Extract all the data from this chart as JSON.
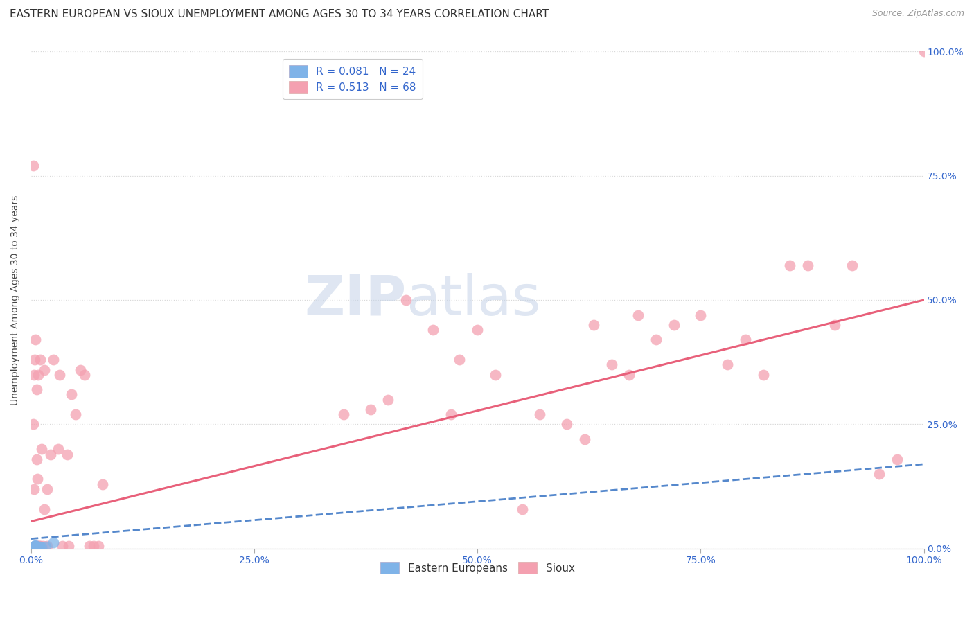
{
  "title": "EASTERN EUROPEAN VS SIOUX UNEMPLOYMENT AMONG AGES 30 TO 34 YEARS CORRELATION CHART",
  "source": "Source: ZipAtlas.com",
  "ylabel": "Unemployment Among Ages 30 to 34 years",
  "xlim": [
    0,
    1
  ],
  "ylim": [
    0,
    1
  ],
  "xticks": [
    0.0,
    0.25,
    0.5,
    0.75,
    1.0
  ],
  "yticks": [
    0.0,
    0.25,
    0.5,
    0.75,
    1.0
  ],
  "xtick_labels": [
    "0.0%",
    "25.0%",
    "50.0%",
    "75.0%",
    "100.0%"
  ],
  "ytick_labels": [
    "0.0%",
    "25.0%",
    "50.0%",
    "75.0%",
    "100.0%"
  ],
  "background_color": "#ffffff",
  "grid_color": "#d8d8d8",
  "blue_color": "#7fb3e8",
  "pink_color": "#f4a0b0",
  "blue_R": 0.081,
  "blue_N": 24,
  "pink_R": 0.513,
  "pink_N": 68,
  "pink_line_x0": 0.0,
  "pink_line_y0": 0.055,
  "pink_line_x1": 1.0,
  "pink_line_y1": 0.5,
  "blue_line_x0": 0.0,
  "blue_line_y0": 0.02,
  "blue_line_x1": 1.0,
  "blue_line_y1": 0.17,
  "eastern_european_x": [
    0.002,
    0.002,
    0.003,
    0.003,
    0.004,
    0.004,
    0.004,
    0.004,
    0.004,
    0.005,
    0.005,
    0.005,
    0.005,
    0.005,
    0.006,
    0.006,
    0.006,
    0.007,
    0.007,
    0.008,
    0.009,
    0.012,
    0.016,
    0.025
  ],
  "eastern_european_y": [
    0.002,
    0.003,
    0.003,
    0.004,
    0.002,
    0.003,
    0.004,
    0.005,
    0.006,
    0.002,
    0.003,
    0.005,
    0.006,
    0.007,
    0.002,
    0.003,
    0.004,
    0.002,
    0.003,
    0.003,
    0.004,
    0.003,
    0.004,
    0.012
  ],
  "sioux_x": [
    0.002,
    0.002,
    0.003,
    0.003,
    0.004,
    0.004,
    0.005,
    0.005,
    0.006,
    0.006,
    0.007,
    0.007,
    0.008,
    0.008,
    0.009,
    0.01,
    0.01,
    0.012,
    0.013,
    0.015,
    0.015,
    0.018,
    0.018,
    0.022,
    0.025,
    0.03,
    0.032,
    0.035,
    0.04,
    0.042,
    0.045,
    0.05,
    0.055,
    0.06,
    0.065,
    0.07,
    0.075,
    0.08,
    0.35,
    0.38,
    0.4,
    0.42,
    0.45,
    0.47,
    0.48,
    0.5,
    0.52,
    0.55,
    0.57,
    0.6,
    0.62,
    0.63,
    0.65,
    0.67,
    0.68,
    0.7,
    0.72,
    0.75,
    0.78,
    0.8,
    0.82,
    0.85,
    0.87,
    0.9,
    0.92,
    0.95,
    0.97,
    1.0
  ],
  "sioux_y": [
    0.77,
    0.25,
    0.12,
    0.35,
    0.005,
    0.38,
    0.005,
    0.42,
    0.18,
    0.32,
    0.005,
    0.14,
    0.005,
    0.35,
    0.005,
    0.38,
    0.005,
    0.2,
    0.005,
    0.08,
    0.36,
    0.12,
    0.005,
    0.19,
    0.38,
    0.2,
    0.35,
    0.005,
    0.19,
    0.005,
    0.31,
    0.27,
    0.36,
    0.35,
    0.005,
    0.005,
    0.005,
    0.13,
    0.27,
    0.28,
    0.3,
    0.5,
    0.44,
    0.27,
    0.38,
    0.44,
    0.35,
    0.08,
    0.27,
    0.25,
    0.22,
    0.45,
    0.37,
    0.35,
    0.47,
    0.42,
    0.45,
    0.47,
    0.37,
    0.42,
    0.35,
    0.57,
    0.57,
    0.45,
    0.57,
    0.15,
    0.18,
    1.0
  ],
  "zipatlas_color": "#c5d3e8",
  "title_fontsize": 11,
  "axis_label_fontsize": 10,
  "tick_fontsize": 10,
  "legend_fontsize": 11
}
